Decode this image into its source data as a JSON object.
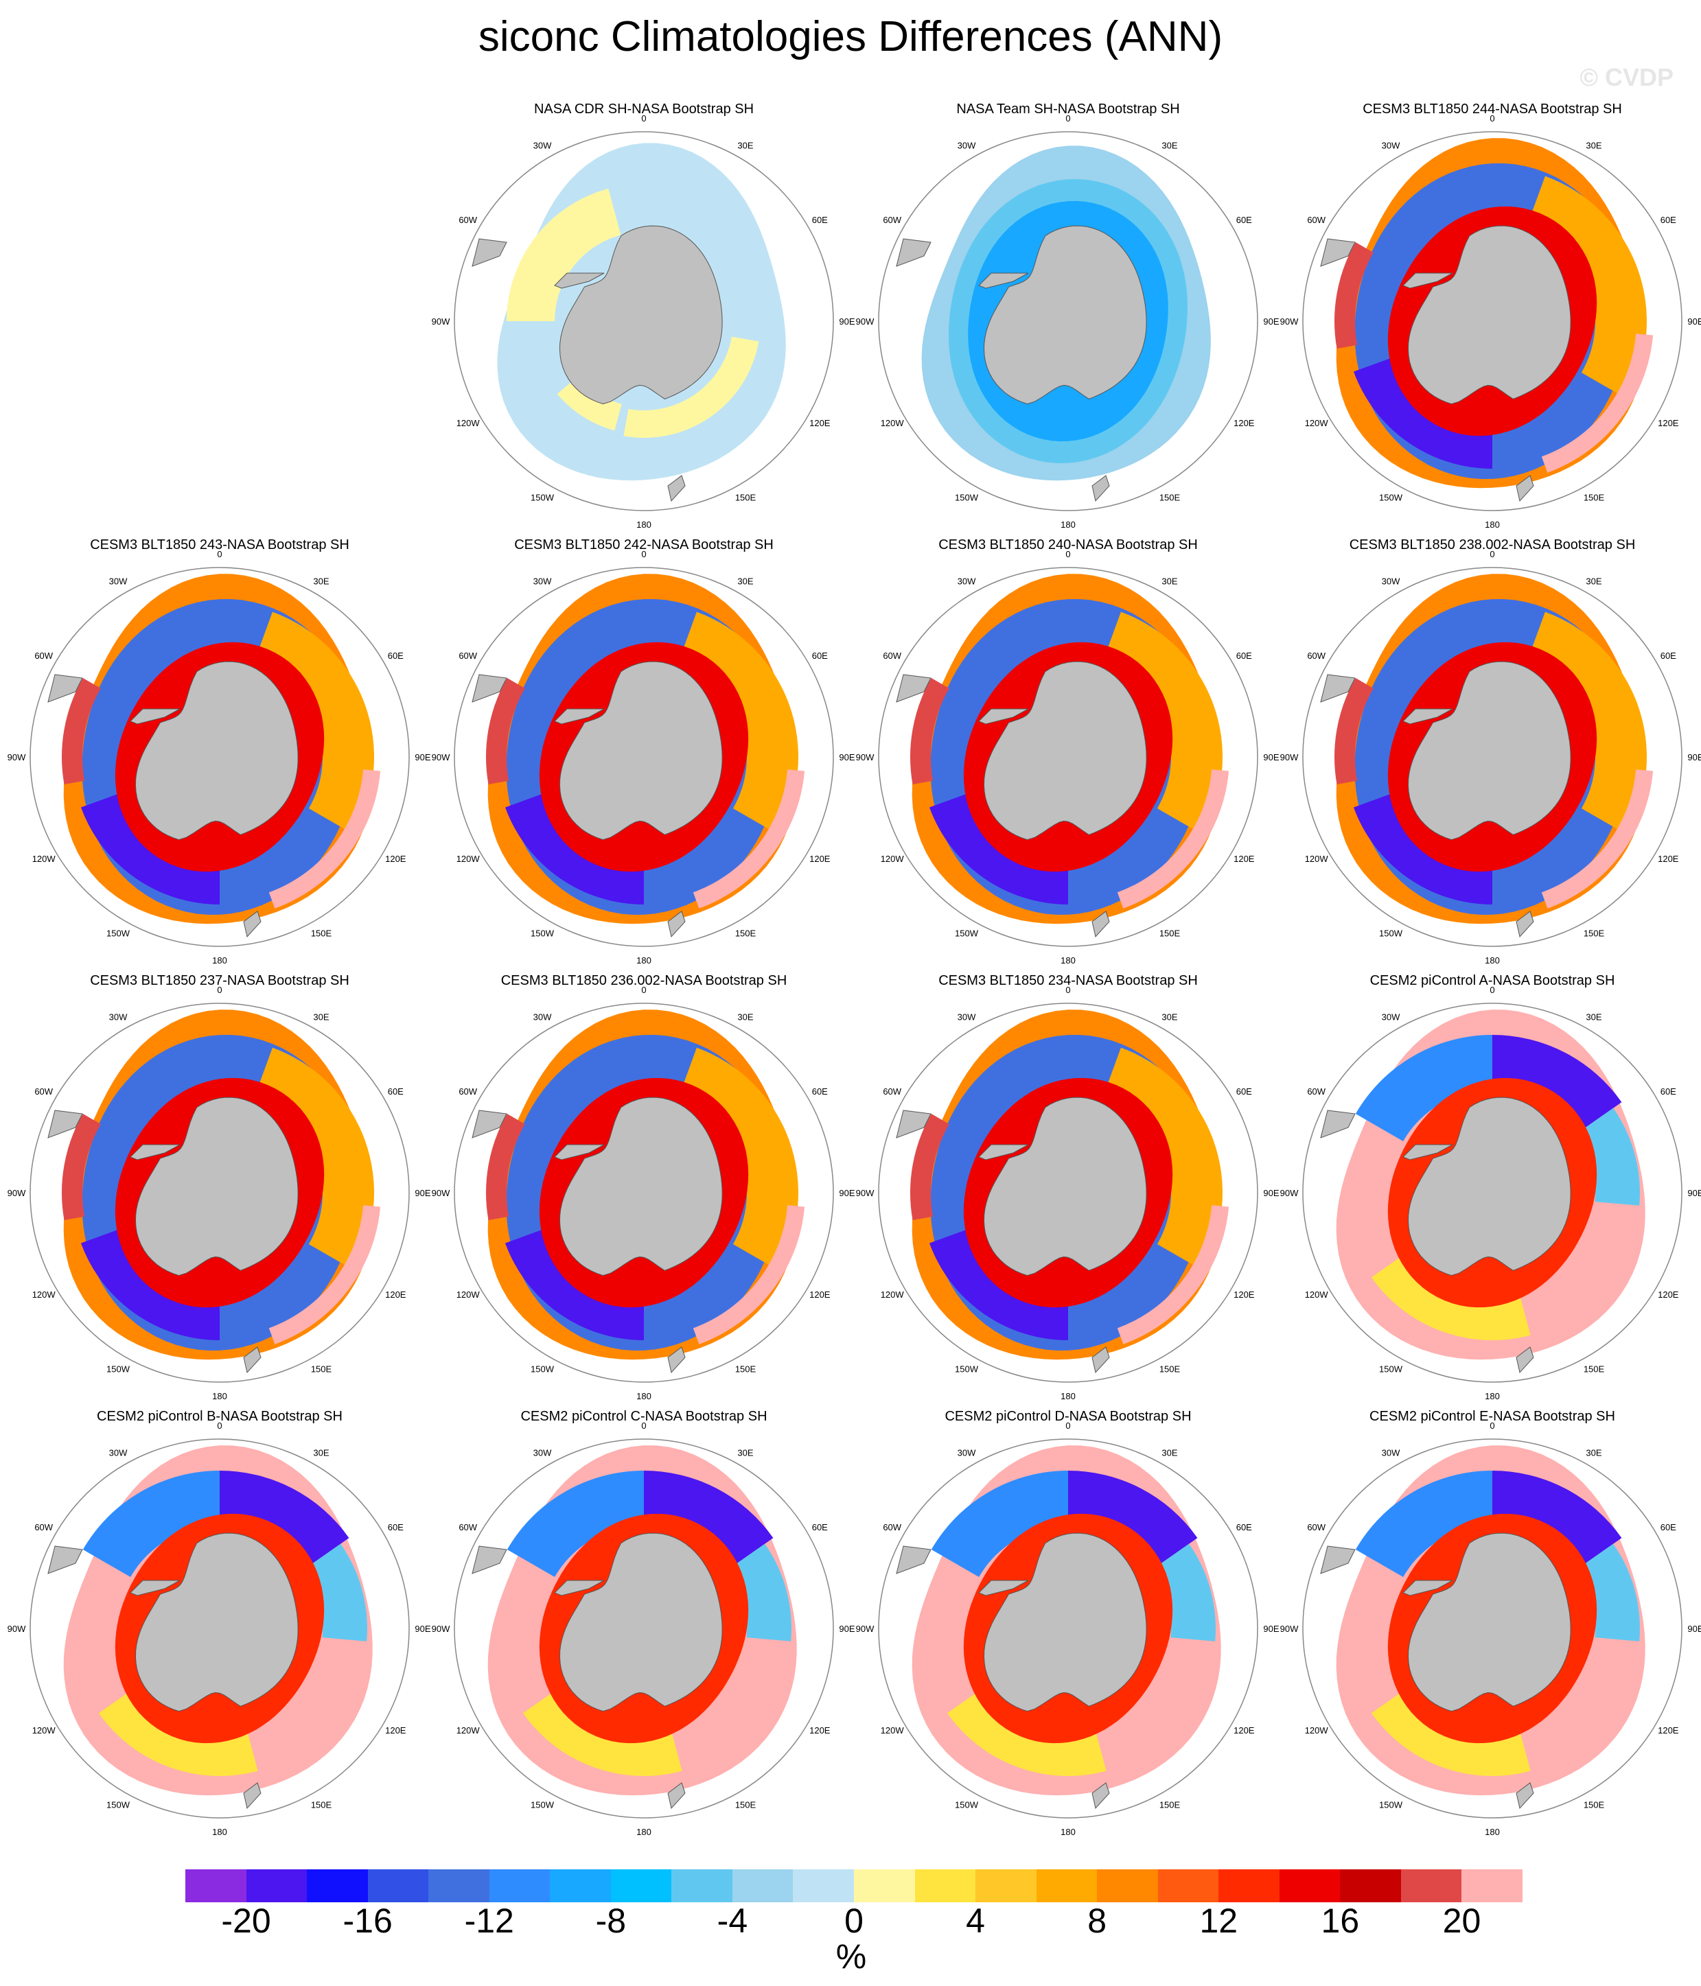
{
  "title": "siconc Climatologies Differences (ANN)",
  "watermark": "© CVDP",
  "unit": "%",
  "lon_labels": [
    "0",
    "30E",
    "60E",
    "90E",
    "120E",
    "150E",
    "180",
    "150W",
    "120W",
    "90W",
    "60W",
    "30W"
  ],
  "colorbar": {
    "colors": [
      "#8a2be2",
      "#4b16f0",
      "#1010ff",
      "#3050e6",
      "#4070e0",
      "#2e8cff",
      "#18a8ff",
      "#00c0ff",
      "#60c8f0",
      "#9cd3ee",
      "#bfe3f4",
      "#fff7a0",
      "#ffe440",
      "#ffc828",
      "#ffaa00",
      "#ff8800",
      "#ff5a10",
      "#ff2a00",
      "#ee0000",
      "#c80000",
      "#e04848",
      "#ffb0b0"
    ],
    "ticks": [
      "-20",
      "-16",
      "-12",
      "-8",
      "-4",
      "0",
      "4",
      "8",
      "12",
      "16",
      "20"
    ]
  },
  "panels": [
    {
      "title": "NASA CDR SH-NASA Bootstrap SH",
      "pattern": "cdr"
    },
    {
      "title": "NASA Team SH-NASA Bootstrap SH",
      "pattern": "team"
    },
    {
      "title": "CESM3 BLT1850 244-NASA Bootstrap SH",
      "pattern": "cesm3"
    },
    {
      "title": "CESM3 BLT1850 243-NASA Bootstrap SH",
      "pattern": "cesm3"
    },
    {
      "title": "CESM3 BLT1850 242-NASA Bootstrap SH",
      "pattern": "cesm3"
    },
    {
      "title": "CESM3 BLT1850 240-NASA Bootstrap SH",
      "pattern": "cesm3"
    },
    {
      "title": "CESM3 BLT1850 238.002-NASA Bootstrap SH",
      "pattern": "cesm3"
    },
    {
      "title": "CESM3 BLT1850 237-NASA Bootstrap SH",
      "pattern": "cesm3"
    },
    {
      "title": "CESM3 BLT1850 236.002-NASA Bootstrap SH",
      "pattern": "cesm3"
    },
    {
      "title": "CESM3 BLT1850 234-NASA Bootstrap SH",
      "pattern": "cesm3"
    },
    {
      "title": "CESM2 piControl A-NASA Bootstrap SH",
      "pattern": "cesm2"
    },
    {
      "title": "CESM2 piControl B-NASA Bootstrap SH",
      "pattern": "cesm2"
    },
    {
      "title": "CESM2 piControl C-NASA Bootstrap SH",
      "pattern": "cesm2"
    },
    {
      "title": "CESM2 piControl D-NASA Bootstrap SH",
      "pattern": "cesm2"
    },
    {
      "title": "CESM2 piControl E-NASA Bootstrap SH",
      "pattern": "cesm2"
    }
  ]
}
